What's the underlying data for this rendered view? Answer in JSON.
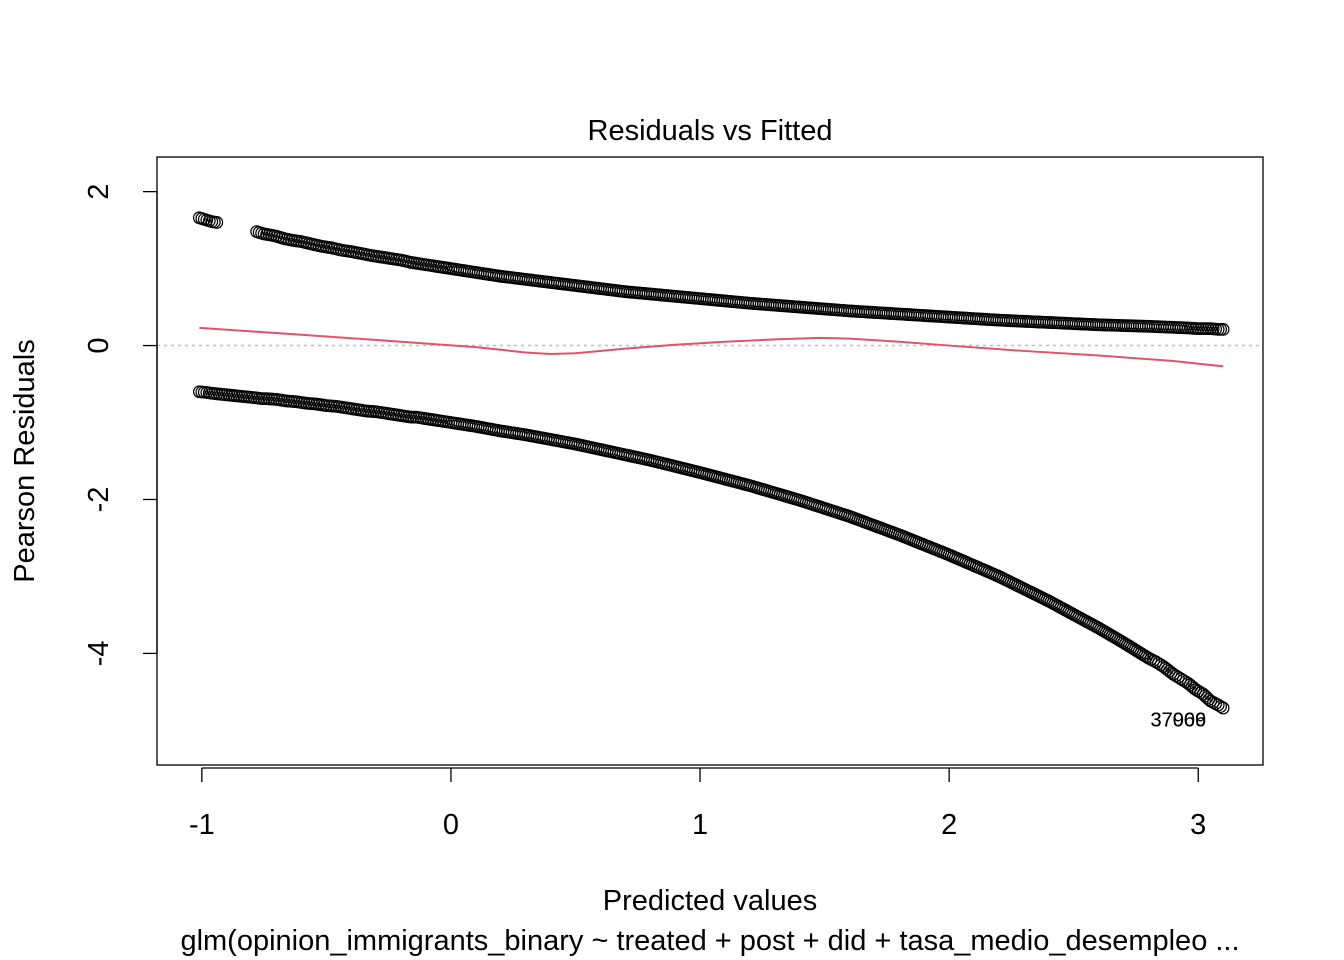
{
  "chart_data": {
    "type": "scatter",
    "title": "Residuals vs Fitted",
    "xlabel": "Predicted values",
    "ylabel": "Pearson Residuals",
    "subtitle": "glm(opinion_immigrants_binary ~ treated + post + did + tasa_medio_desempleo ...",
    "xlim": [
      -1.18,
      3.26
    ],
    "ylim": [
      -5.45,
      2.45
    ],
    "x_ticks": [
      -1,
      0,
      1,
      2,
      3
    ],
    "y_ticks": [
      -4,
      -2,
      0,
      2
    ],
    "grid": false,
    "reference_line": {
      "y": 0,
      "style": "dotted",
      "color": "#bebebe"
    },
    "series": [
      {
        "kind": "points",
        "color": "#000000",
        "marker": "open-circle",
        "description": "upper band (y = 1)",
        "x": [
          -1.01,
          -0.98,
          -0.96,
          -0.94,
          -0.78,
          -0.77,
          -0.76,
          -0.75,
          -0.73,
          -0.7,
          -0.67,
          -0.64,
          -0.6,
          -0.56,
          -0.52,
          -0.48,
          -0.44,
          -0.4,
          -0.35,
          -0.32,
          -0.28,
          -0.24,
          -0.2,
          -0.16,
          -0.12,
          -0.08,
          -0.04,
          0.0,
          0.1,
          0.2,
          0.3,
          0.4,
          0.5,
          0.6,
          0.7,
          0.8,
          0.9,
          1.0,
          1.2,
          1.4,
          1.6,
          1.8,
          2.0,
          2.2,
          2.4,
          2.6,
          2.8,
          2.95,
          3.0,
          3.05,
          3.08,
          3.1
        ],
        "y": [
          1.66,
          1.63,
          1.61,
          1.6,
          1.48,
          1.47,
          1.46,
          1.45,
          1.44,
          1.42,
          1.39,
          1.37,
          1.35,
          1.32,
          1.29,
          1.27,
          1.24,
          1.22,
          1.19,
          1.17,
          1.15,
          1.13,
          1.11,
          1.08,
          1.06,
          1.04,
          1.02,
          1.0,
          0.95,
          0.9,
          0.86,
          0.82,
          0.78,
          0.74,
          0.7,
          0.67,
          0.64,
          0.61,
          0.55,
          0.5,
          0.45,
          0.41,
          0.37,
          0.33,
          0.3,
          0.27,
          0.25,
          0.23,
          0.22,
          0.22,
          0.21,
          0.21
        ]
      },
      {
        "kind": "points",
        "color": "#000000",
        "marker": "open-circle",
        "description": "lower band (y = 0)",
        "x": [
          -1.01,
          -0.98,
          -0.96,
          -0.93,
          -0.9,
          -0.87,
          -0.84,
          -0.78,
          -0.76,
          -0.74,
          -0.7,
          -0.66,
          -0.62,
          -0.58,
          -0.54,
          -0.5,
          -0.46,
          -0.42,
          -0.38,
          -0.34,
          -0.3,
          -0.26,
          -0.22,
          -0.16,
          -0.14,
          -0.12,
          -0.1,
          -0.06,
          -0.02,
          0.0,
          0.1,
          0.2,
          0.3,
          0.4,
          0.5,
          0.6,
          0.7,
          0.8,
          0.9,
          1.0,
          1.2,
          1.4,
          1.6,
          1.8,
          2.0,
          2.2,
          2.4,
          2.6,
          2.7,
          2.8,
          2.83,
          2.86,
          2.9,
          2.93,
          2.96,
          2.99,
          3.0,
          3.02,
          3.05,
          3.08,
          3.1
        ],
        "y": [
          -0.6,
          -0.61,
          -0.62,
          -0.63,
          -0.64,
          -0.65,
          -0.66,
          -0.68,
          -0.69,
          -0.69,
          -0.7,
          -0.72,
          -0.73,
          -0.75,
          -0.76,
          -0.78,
          -0.79,
          -0.81,
          -0.83,
          -0.85,
          -0.86,
          -0.88,
          -0.9,
          -0.93,
          -0.93,
          -0.94,
          -0.95,
          -0.97,
          -0.99,
          -1.0,
          -1.05,
          -1.11,
          -1.16,
          -1.22,
          -1.28,
          -1.35,
          -1.42,
          -1.49,
          -1.57,
          -1.65,
          -1.82,
          -2.01,
          -2.22,
          -2.46,
          -2.72,
          -3.0,
          -3.32,
          -3.67,
          -3.86,
          -4.06,
          -4.11,
          -4.17,
          -4.27,
          -4.33,
          -4.39,
          -4.47,
          -4.49,
          -4.53,
          -4.62,
          -4.67,
          -4.71
        ]
      },
      {
        "kind": "line",
        "name": "",
        "color": "#df536b",
        "description": "loess smoother",
        "x": [
          -1.01,
          -0.6,
          -0.2,
          0.1,
          0.3,
          0.4,
          0.5,
          0.7,
          0.9,
          1.1,
          1.3,
          1.48,
          1.6,
          1.8,
          2.0,
          2.3,
          2.6,
          2.9,
          3.1
        ],
        "y": [
          0.23,
          0.14,
          0.05,
          -0.02,
          -0.09,
          -0.11,
          -0.1,
          -0.04,
          0.01,
          0.05,
          0.08,
          0.1,
          0.09,
          0.05,
          0.0,
          -0.07,
          -0.13,
          -0.2,
          -0.27
        ]
      }
    ],
    "annotations": [
      {
        "text": "37966",
        "x": 2.92,
        "y": -4.86
      },
      {
        "text": "37009",
        "x": 2.92,
        "y": -4.86
      }
    ]
  }
}
